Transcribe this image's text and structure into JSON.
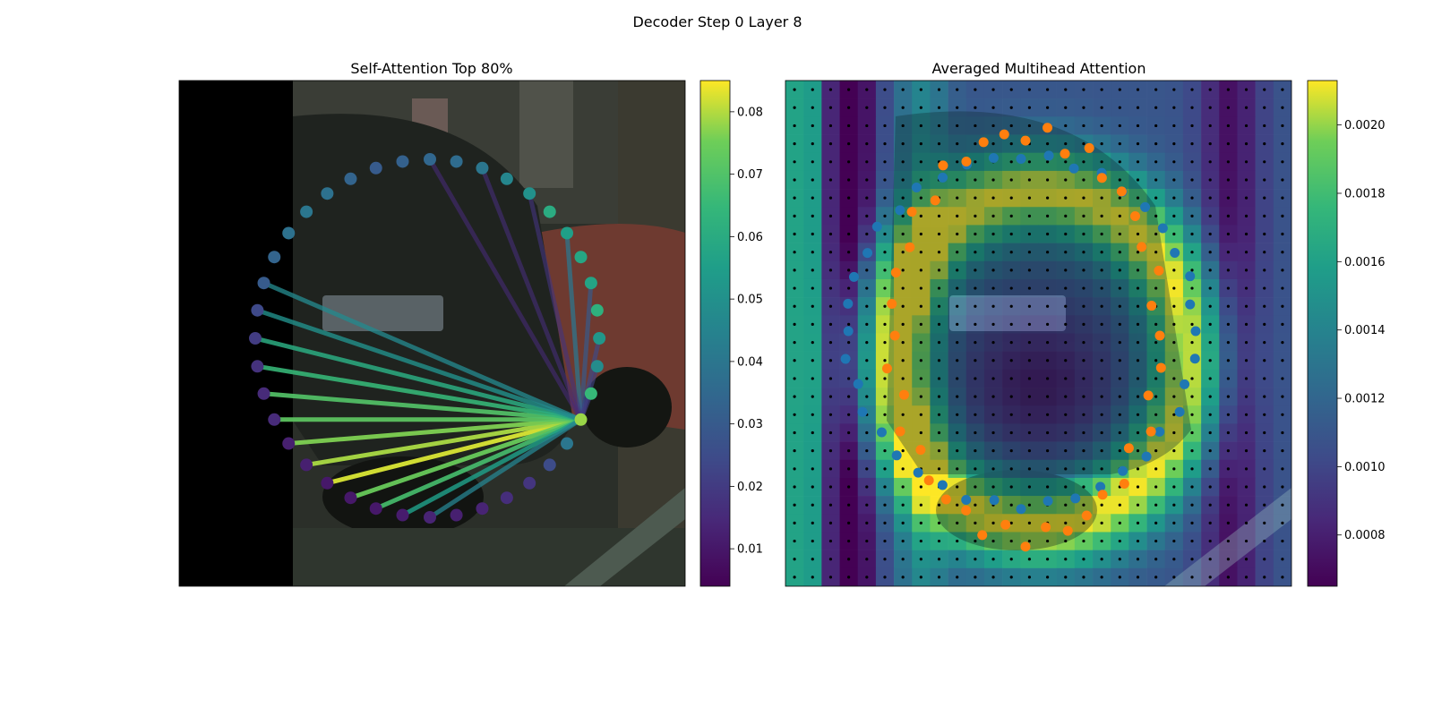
{
  "figure": {
    "title": "Decoder Step 0 Layer 8"
  },
  "chart_data": [
    {
      "type": "scatter",
      "title": "Self-Attention Top 80%",
      "xlabel": "",
      "ylabel": "",
      "grid": false,
      "background": "camera image of a dark car rear on a street (left strip black)",
      "colormap": "viridis",
      "colorbar": {
        "ticks": [
          "0.01",
          "0.02",
          "0.03",
          "0.04",
          "0.05",
          "0.06",
          "0.07",
          "0.08"
        ],
        "range": [
          0.004,
          0.085
        ]
      },
      "points": {
        "description": "40 polygon vertex queries arranged in a ring, colored by attention weight",
        "values": [
          0.013,
          0.011,
          0.01,
          0.01,
          0.01,
          0.012,
          0.012,
          0.015,
          0.015,
          0.017,
          0.02,
          0.024,
          0.03,
          0.033,
          0.038,
          0.04,
          0.038,
          0.033,
          0.03,
          0.032,
          0.034,
          0.036,
          0.04,
          0.046,
          0.05,
          0.06,
          0.055,
          0.058,
          0.057,
          0.062,
          0.052,
          0.048,
          0.065,
          0.078,
          0.04,
          0.025,
          0.018,
          0.016,
          0.013,
          0.012
        ]
      },
      "edges": {
        "description": "top attention links from the focus vertex to other vertices",
        "weights": [
          0.082,
          0.079,
          0.076,
          0.074,
          0.072,
          0.07,
          0.068,
          0.065,
          0.06,
          0.055,
          0.05,
          0.047,
          0.045,
          0.04,
          0.03,
          0.025,
          0.022,
          0.02,
          0.018,
          0.016,
          0.015
        ]
      }
    },
    {
      "type": "heatmap",
      "title": "Averaged Multihead Attention",
      "xlabel": "",
      "ylabel": "",
      "grid": false,
      "colormap": "viridis",
      "colorbar": {
        "ticks": [
          "0.0008",
          "0.0010",
          "0.0012",
          "0.0014",
          "0.0016",
          "0.0018",
          "0.0020"
        ],
        "range": [
          0.00065,
          0.00213
        ]
      },
      "grid_size": [
        28,
        28
      ],
      "series": [
        {
          "color": "#1f77b4"
        },
        {
          "color": "#ff7f0e"
        },
        {
          "color": "#000000"
        }
      ]
    }
  ]
}
